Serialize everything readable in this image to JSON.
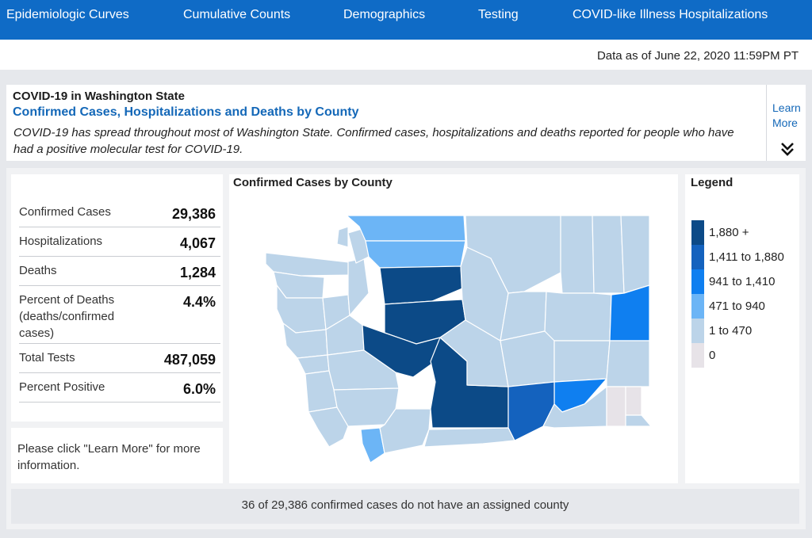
{
  "nav": {
    "tabs": [
      {
        "label": "Epidemiologic Curves"
      },
      {
        "label": "Cumulative Counts"
      },
      {
        "label": "Demographics"
      },
      {
        "label": "Testing"
      },
      {
        "label": "COVID-like Illness Hospitalizations"
      }
    ],
    "bg_color": "#0f6bc6"
  },
  "as_of": "Data as of June 22, 2020 11:59PM PT",
  "header": {
    "title": "COVID-19 in Washington State",
    "subtitle": "Confirmed Cases, Hospitalizations and Deaths by County",
    "description": "COVID-19 has spread throughout most of Washington State. Confirmed cases, hospitalizations and deaths reported for people who have had a positive molecular test for COVID-19.",
    "learn_more": "Learn More",
    "expand_icon": "double-chevron-down-icon"
  },
  "stats": [
    {
      "label": "Confirmed Cases",
      "value": "29,386"
    },
    {
      "label": "Hospitalizations",
      "value": "4,067"
    },
    {
      "label": "Deaths",
      "value": "1,284"
    },
    {
      "label": "Percent of Deaths (deaths/confirmed cases)",
      "value": "4.4%"
    },
    {
      "label": "Total Tests",
      "value": "487,059"
    },
    {
      "label": "Percent Positive",
      "value": "6.0%"
    }
  ],
  "note": "Please click \"Learn More\" for more information.",
  "map": {
    "title": "Confirmed Cases by County"
  },
  "legend": {
    "title": "Legend",
    "items": [
      {
        "label": "1,880 +",
        "color": "#0c4a87"
      },
      {
        "label": "1,411 to 1,880",
        "color": "#1462be"
      },
      {
        "label": "941 to 1,410",
        "color": "#0f7ff0"
      },
      {
        "label": "471 to 940",
        "color": "#6cb5f6"
      },
      {
        "label": "1 to 470",
        "color": "#bcd4e9"
      },
      {
        "label": "0",
        "color": "#e7e3e8"
      }
    ]
  },
  "footer": "36 of 29,386 confirmed cases do not have an assigned county"
}
